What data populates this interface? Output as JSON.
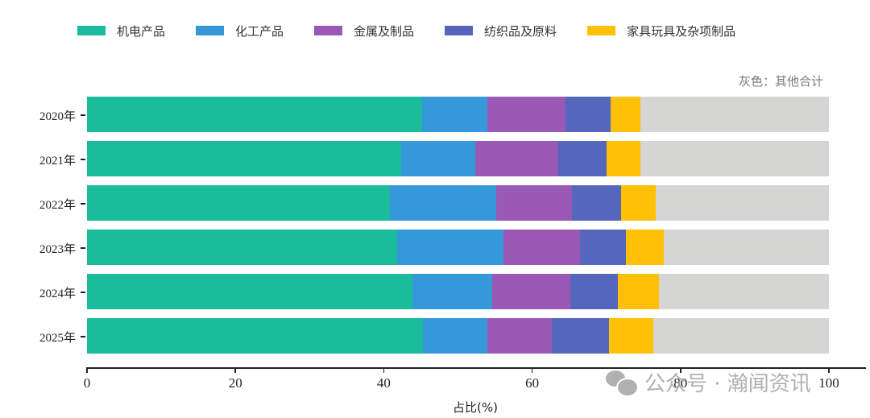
{
  "chart_data": {
    "type": "bar",
    "orientation": "horizontal",
    "stacked": true,
    "title": "",
    "xlabel": "占比(%)",
    "ylabel": "",
    "xlim": [
      0,
      100
    ],
    "xticks": [
      "0",
      "20",
      "40",
      "60",
      "80",
      "100"
    ],
    "categories": [
      "2020年",
      "2021年",
      "2022年",
      "2023年",
      "2024年",
      "2025年"
    ],
    "series": [
      {
        "name": "机电产品",
        "color": "#1abc9c",
        "values": [
          45.2,
          42.3,
          40.8,
          41.8,
          43.9,
          45.3
        ]
      },
      {
        "name": "化工产品",
        "color": "#3498db",
        "values": [
          8.8,
          10.0,
          14.4,
          14.3,
          10.7,
          8.7
        ]
      },
      {
        "name": "金属及制品",
        "color": "#9b59b6",
        "values": [
          10.5,
          11.2,
          10.2,
          10.4,
          10.6,
          8.6
        ]
      },
      {
        "name": "纺织品及原料",
        "color": "#5567bd",
        "values": [
          6.1,
          6.5,
          6.6,
          6.1,
          6.3,
          7.8
        ]
      },
      {
        "name": "家具玩具及杂项制品",
        "color": "#ffc107",
        "values": [
          4.0,
          4.6,
          4.7,
          5.1,
          5.6,
          5.9
        ]
      },
      {
        "name": "其他合计",
        "color": "#d5d5d3",
        "values": [
          25.4,
          25.4,
          23.3,
          22.3,
          22.9,
          23.7
        ]
      }
    ],
    "legend_position": "top",
    "annotations": [
      "灰色：其他合计"
    ],
    "grid": false
  },
  "legend": [
    {
      "label": "机电产品",
      "color": "#1abc9c"
    },
    {
      "label": "化工产品",
      "color": "#3498db"
    },
    {
      "label": "金属及制品",
      "color": "#9b59b6"
    },
    {
      "label": "纺织品及原料",
      "color": "#5567bd"
    },
    {
      "label": "家具玩具及杂项制品",
      "color": "#ffc107"
    }
  ],
  "note": "灰色：其他合计",
  "watermark": "公众号 · 瀚闻资讯"
}
